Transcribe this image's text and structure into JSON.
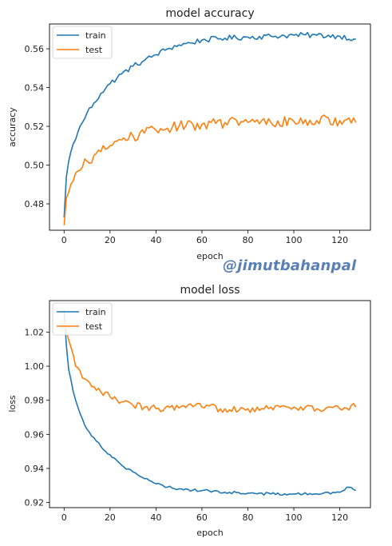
{
  "watermark": "@jimutbahanpal",
  "chart_data": [
    {
      "type": "line",
      "title": "model accuracy",
      "xlabel": "epoch",
      "ylabel": "accuracy",
      "xlim": [
        -6.35,
        133.35
      ],
      "ylim": [
        0.4664,
        0.5728
      ],
      "xticks": [
        0,
        20,
        40,
        60,
        80,
        100,
        120
      ],
      "xtick_labels": [
        "0",
        "20",
        "40",
        "60",
        "80",
        "100",
        "120"
      ],
      "yticks": [
        0.48,
        0.5,
        0.52,
        0.54,
        0.56
      ],
      "ytick_labels": [
        "0.48",
        "0.50",
        "0.52",
        "0.54",
        "0.56"
      ],
      "legend": "top-left",
      "grid": false,
      "series": [
        {
          "name": "train",
          "color": "#1f77b4",
          "anchors": [
            [
              0,
              0.473
            ],
            [
              1,
              0.494
            ],
            [
              2,
              0.502
            ],
            [
              4,
              0.511
            ],
            [
              6,
              0.517
            ],
            [
              8,
              0.522
            ],
            [
              10,
              0.527
            ],
            [
              13,
              0.532
            ],
            [
              16,
              0.537
            ],
            [
              20,
              0.542
            ],
            [
              25,
              0.547
            ],
            [
              30,
              0.551
            ],
            [
              35,
              0.554
            ],
            [
              40,
              0.557
            ],
            [
              45,
              0.56
            ],
            [
              50,
              0.562
            ],
            [
              55,
              0.563
            ],
            [
              60,
              0.5645
            ],
            [
              70,
              0.5655
            ],
            [
              80,
              0.566
            ],
            [
              90,
              0.5665
            ],
            [
              100,
              0.567
            ],
            [
              110,
              0.567
            ],
            [
              120,
              0.5665
            ],
            [
              127,
              0.565
            ]
          ],
          "noise": 0.0014
        },
        {
          "name": "test",
          "color": "#ff7f0e",
          "anchors": [
            [
              0,
              0.469
            ],
            [
              1,
              0.483
            ],
            [
              2,
              0.486
            ],
            [
              4,
              0.492
            ],
            [
              6,
              0.497
            ],
            [
              8,
              0.499
            ],
            [
              10,
              0.502
            ],
            [
              13,
              0.505
            ],
            [
              16,
              0.507
            ],
            [
              20,
              0.51
            ],
            [
              25,
              0.513
            ],
            [
              30,
              0.515
            ],
            [
              35,
              0.5165
            ],
            [
              40,
              0.518
            ],
            [
              45,
              0.519
            ],
            [
              50,
              0.52
            ],
            [
              60,
              0.521
            ],
            [
              70,
              0.522
            ],
            [
              80,
              0.522
            ],
            [
              90,
              0.522
            ],
            [
              100,
              0.5225
            ],
            [
              110,
              0.523
            ],
            [
              120,
              0.523
            ],
            [
              127,
              0.522
            ]
          ],
          "noise": 0.0028
        }
      ]
    },
    {
      "type": "line",
      "title": "model loss",
      "xlabel": "epoch",
      "ylabel": "loss",
      "xlim": [
        -6.35,
        133.35
      ],
      "ylim": [
        0.917,
        1.0385
      ],
      "xticks": [
        0,
        20,
        40,
        60,
        80,
        100,
        120
      ],
      "xtick_labels": [
        "0",
        "20",
        "40",
        "60",
        "80",
        "100",
        "120"
      ],
      "yticks": [
        0.92,
        0.94,
        0.96,
        0.98,
        1.0,
        1.02
      ],
      "ytick_labels": [
        "0.92",
        "0.94",
        "0.96",
        "0.98",
        "1.00",
        "1.02"
      ],
      "legend": "top-left",
      "grid": false,
      "series": [
        {
          "name": "train",
          "color": "#1f77b4",
          "anchors": [
            [
              0,
              1.033
            ],
            [
              1,
              1.012
            ],
            [
              2,
              0.998
            ],
            [
              4,
              0.985
            ],
            [
              6,
              0.976
            ],
            [
              8,
              0.969
            ],
            [
              10,
              0.963
            ],
            [
              13,
              0.958
            ],
            [
              16,
              0.953
            ],
            [
              20,
              0.948
            ],
            [
              25,
              0.942
            ],
            [
              30,
              0.938
            ],
            [
              35,
              0.934
            ],
            [
              40,
              0.931
            ],
            [
              45,
              0.929
            ],
            [
              50,
              0.928
            ],
            [
              60,
              0.927
            ],
            [
              70,
              0.926
            ],
            [
              80,
              0.9255
            ],
            [
              90,
              0.925
            ],
            [
              100,
              0.925
            ],
            [
              110,
              0.925
            ],
            [
              120,
              0.926
            ],
            [
              124,
              0.929
            ],
            [
              127,
              0.927
            ]
          ],
          "noise": 0.0008
        },
        {
          "name": "test",
          "color": "#ff7f0e",
          "anchors": [
            [
              0,
              1.028
            ],
            [
              1,
              1.02
            ],
            [
              3,
              1.011
            ],
            [
              5,
              1.0
            ],
            [
              8,
              0.993
            ],
            [
              12,
              0.988
            ],
            [
              16,
              0.985
            ],
            [
              20,
              0.982
            ],
            [
              25,
              0.979
            ],
            [
              30,
              0.977
            ],
            [
              35,
              0.976
            ],
            [
              40,
              0.975
            ],
            [
              50,
              0.9755
            ],
            [
              60,
              0.976
            ],
            [
              70,
              0.975
            ],
            [
              80,
              0.975
            ],
            [
              90,
              0.976
            ],
            [
              100,
              0.976
            ],
            [
              110,
              0.975
            ],
            [
              120,
              0.975
            ],
            [
              127,
              0.976
            ]
          ],
          "noise": 0.0023
        }
      ]
    }
  ]
}
